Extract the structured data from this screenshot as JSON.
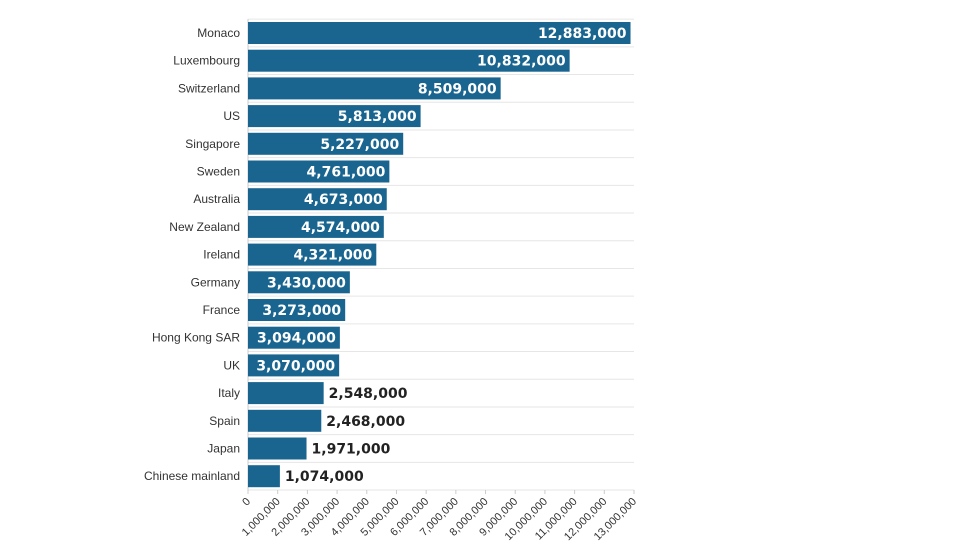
{
  "chart_data": {
    "type": "bar",
    "orientation": "horizontal",
    "categories": [
      "Monaco",
      "Luxembourg",
      "Switzerland",
      "US",
      "Singapore",
      "Sweden",
      "Australia",
      "New Zealand",
      "Ireland",
      "Germany",
      "France",
      "Hong Kong SAR",
      "UK",
      "Italy",
      "Spain",
      "Japan",
      "Chinese mainland"
    ],
    "values": [
      12883000,
      10832000,
      8509000,
      5813000,
      5227000,
      4761000,
      4673000,
      4574000,
      4321000,
      3430000,
      3273000,
      3094000,
      3070000,
      2548000,
      2468000,
      1971000,
      1074000
    ],
    "value_labels": [
      "12,883,000",
      "10,832,000",
      "8,509,000",
      "5,813,000",
      "5,227,000",
      "4,761,000",
      "4,673,000",
      "4,574,000",
      "4,321,000",
      "3,430,000",
      "3,273,000",
      "3,094,000",
      "3,070,000",
      "2,548,000",
      "2,468,000",
      "1,971,000",
      "1,074,000"
    ],
    "x_ticks": [
      0,
      1000000,
      2000000,
      3000000,
      4000000,
      5000000,
      6000000,
      7000000,
      8000000,
      9000000,
      10000000,
      11000000,
      12000000,
      13000000
    ],
    "x_tick_labels": [
      "0",
      "1,000,000",
      "2,000,000",
      "3,000,000",
      "4,000,000",
      "5,000,000",
      "6,000,000",
      "7,000,000",
      "8,000,000",
      "9,000,000",
      "10,000,000",
      "11,000,000",
      "12,000,000",
      "13,000,000"
    ],
    "xlim": [
      0,
      13000000
    ],
    "title": "",
    "xlabel": "",
    "ylabel": "",
    "grid": true,
    "bar_color": "#1a6590",
    "label_inside_color": "#ffffff",
    "label_outside_color": "#222222"
  }
}
